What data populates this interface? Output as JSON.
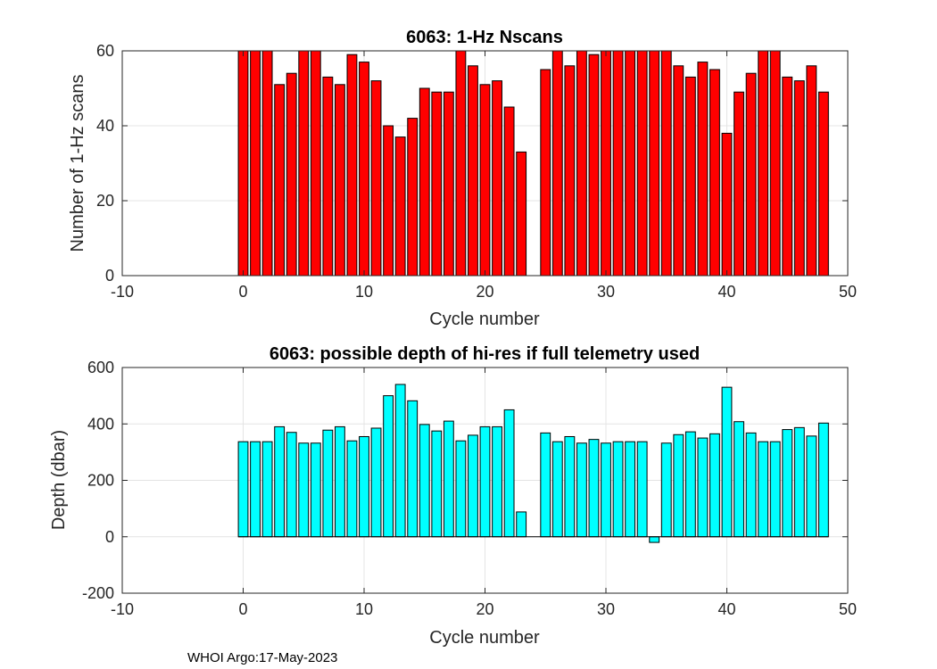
{
  "footer": "WHOI Argo:17-May-2023",
  "chart_data": [
    {
      "type": "bar",
      "title": "6063: 1-Hz Nscans",
      "xlabel": "Cycle number",
      "ylabel": "Number of 1-Hz scans",
      "xlim": [
        -10,
        50
      ],
      "ylim": [
        0,
        60
      ],
      "xticks": [
        -10,
        0,
        10,
        20,
        30,
        40,
        50
      ],
      "yticks": [
        0,
        20,
        40,
        60
      ],
      "grid": true,
      "bar_color": "#ff0000",
      "x": [
        0,
        1,
        2,
        3,
        4,
        5,
        6,
        7,
        8,
        9,
        10,
        11,
        12,
        13,
        14,
        15,
        16,
        17,
        18,
        19,
        20,
        21,
        22,
        23,
        25,
        26,
        27,
        28,
        29,
        30,
        31,
        32,
        33,
        34,
        35,
        36,
        37,
        38,
        39,
        40,
        41,
        42,
        43,
        44,
        45,
        46,
        47,
        48
      ],
      "values": [
        60,
        60,
        60,
        51,
        54,
        60,
        60,
        53,
        51,
        59,
        57,
        52,
        40,
        37,
        42,
        50,
        49,
        49,
        60,
        56,
        51,
        52,
        45,
        33,
        55,
        60,
        56,
        60,
        59,
        60,
        60,
        60,
        60,
        60,
        60,
        56,
        53,
        57,
        55,
        38,
        49,
        54,
        60,
        60,
        53,
        52,
        56,
        49
      ]
    },
    {
      "type": "bar",
      "title": "6063: possible depth of hi-res if full telemetry used",
      "xlabel": "Cycle number",
      "ylabel": "Depth (dbar)",
      "xlim": [
        -10,
        50
      ],
      "ylim": [
        -200,
        600
      ],
      "xticks": [
        -10,
        0,
        10,
        20,
        30,
        40,
        50
      ],
      "yticks": [
        -200,
        0,
        200,
        400,
        600
      ],
      "grid": true,
      "bar_color": "#00ffff",
      "x": [
        0,
        1,
        2,
        3,
        4,
        5,
        6,
        7,
        8,
        9,
        10,
        11,
        12,
        13,
        14,
        15,
        16,
        17,
        18,
        19,
        20,
        21,
        22,
        23,
        25,
        26,
        27,
        28,
        29,
        30,
        31,
        32,
        33,
        34,
        35,
        36,
        37,
        38,
        39,
        40,
        41,
        42,
        43,
        44,
        45,
        46,
        47,
        48
      ],
      "values": [
        337,
        337,
        337,
        390,
        370,
        332,
        332,
        378,
        390,
        340,
        355,
        385,
        500,
        540,
        482,
        398,
        375,
        410,
        340,
        360,
        390,
        390,
        450,
        88,
        368,
        337,
        355,
        332,
        345,
        332,
        337,
        337,
        337,
        -20,
        332,
        362,
        372,
        350,
        365,
        530,
        408,
        368,
        337,
        337,
        380,
        387,
        357,
        403
      ]
    }
  ]
}
